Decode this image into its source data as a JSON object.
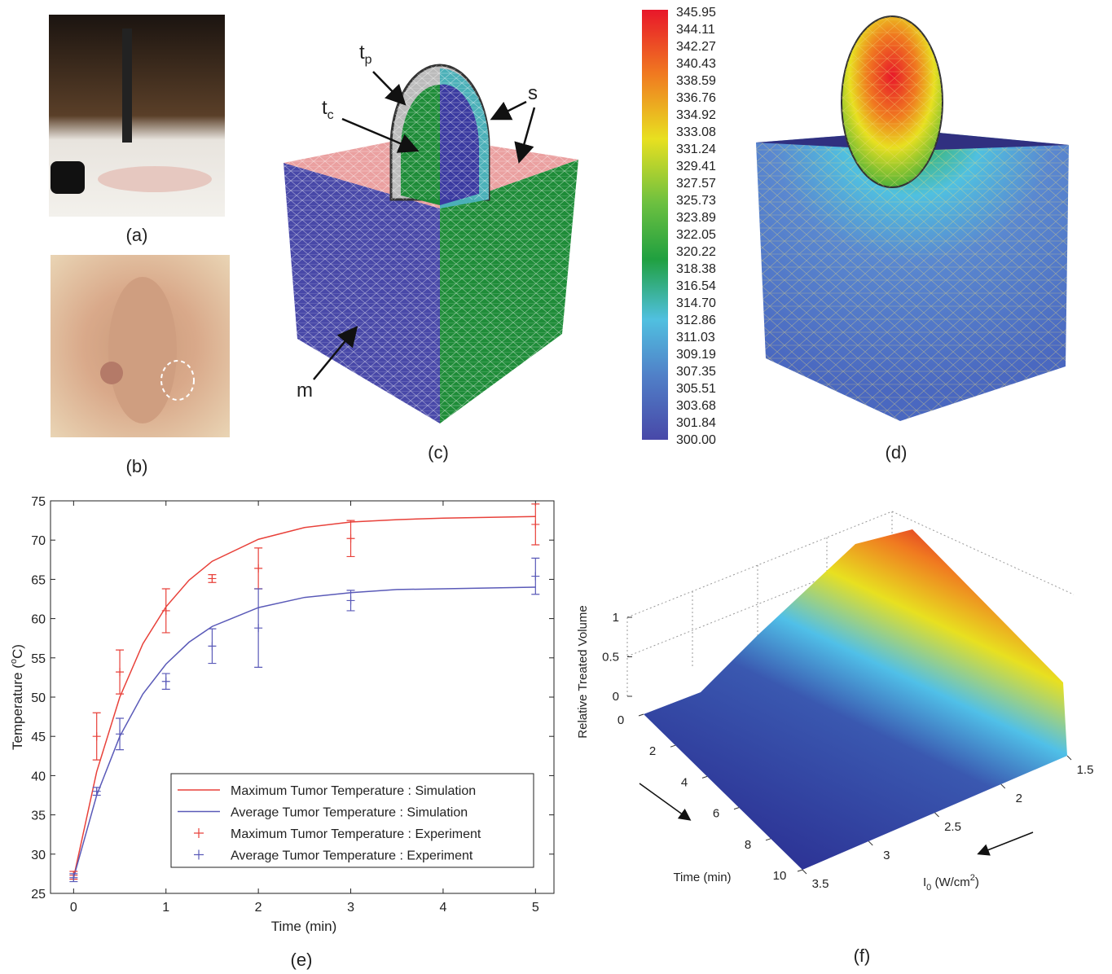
{
  "panel_labels": [
    "(a)",
    "(b)",
    "(c)",
    "(d)",
    "(e)",
    "(f)"
  ],
  "mesh_labels": [
    {
      "base": "t",
      "sub": "p"
    },
    {
      "base": "t",
      "sub": "c"
    },
    {
      "base": "s"
    },
    {
      "base": "m"
    }
  ],
  "colorbar": {
    "labels": [
      "345.95",
      "344.11",
      "342.27",
      "340.43",
      "338.59",
      "336.76",
      "334.92",
      "333.08",
      "331.24",
      "329.41",
      "327.57",
      "325.73",
      "323.89",
      "322.05",
      "320.22",
      "318.38",
      "316.54",
      "314.70",
      "312.86",
      "311.03",
      "309.19",
      "307.35",
      "305.51",
      "303.68",
      "301.84",
      "300.00"
    ]
  },
  "chart_data": [
    {
      "type": "line",
      "xlabel": "Time (min)",
      "ylabel": {
        "text": "Temperature (",
        "sup": "o",
        "end": "C)"
      },
      "xlim": [
        -0.25,
        5.2
      ],
      "ylim": [
        25,
        75
      ],
      "xticks": [
        0,
        1,
        2,
        3,
        4,
        5
      ],
      "yticks": [
        25,
        30,
        35,
        40,
        45,
        50,
        55,
        60,
        65,
        70,
        75
      ],
      "legend": "lower right",
      "series": [
        {
          "name": "Maximum Tumor Temperature : Simulation",
          "color": "#e8413a",
          "style": "line",
          "x": [
            0,
            0.25,
            0.5,
            0.75,
            1,
            1.25,
            1.5,
            2,
            2.5,
            3,
            3.5,
            4,
            4.5,
            5
          ],
          "values": [
            27,
            40.5,
            50.0,
            56.8,
            61.5,
            64.9,
            67.3,
            70.1,
            71.6,
            72.3,
            72.6,
            72.8,
            72.9,
            73.0
          ]
        },
        {
          "name": "Average Tumor Temperature : Simulation",
          "color": "#5a5ab8",
          "style": "line",
          "x": [
            0,
            0.25,
            0.5,
            0.75,
            1,
            1.25,
            1.5,
            2,
            2.5,
            3,
            3.5,
            4,
            4.5,
            5
          ],
          "values": [
            27,
            37.5,
            45.0,
            50.4,
            54.2,
            57.0,
            59.0,
            61.4,
            62.7,
            63.3,
            63.7,
            63.8,
            63.9,
            64.0
          ]
        },
        {
          "name": "Maximum Tumor Temperature : Experiment",
          "color": "#e8413a",
          "style": "errorbar",
          "x": [
            0,
            0.25,
            0.5,
            1,
            1.5,
            2,
            3,
            5
          ],
          "values": [
            27.3,
            45,
            53.2,
            61,
            65.1,
            66.4,
            70.2,
            72
          ],
          "errors": [
            0.5,
            3,
            2.8,
            2.8,
            0.5,
            2.6,
            2.3,
            2.6
          ]
        },
        {
          "name": "Average Tumor Temperature : Experiment",
          "color": "#5a5ab8",
          "style": "errorbar",
          "x": [
            0,
            0.25,
            0.5,
            1,
            1.5,
            2,
            3,
            5
          ],
          "values": [
            27,
            38,
            45.3,
            52,
            56.5,
            58.8,
            62.3,
            65.4
          ],
          "errors": [
            0.5,
            0.5,
            2,
            1,
            2.2,
            5,
            1.3,
            2.3
          ]
        }
      ]
    },
    {
      "type": "surface",
      "zlabel": "Relative Treated Volume",
      "xlabel": "Time (min)",
      "ylabel": {
        "base": "I",
        "sub": "0",
        "unit": " (W/cm",
        "sup": "2",
        "end": ")"
      },
      "xlim": [
        0,
        10
      ],
      "xticks": [
        0,
        2,
        4,
        6,
        8,
        10
      ],
      "ylim": [
        1.5,
        3.5
      ],
      "yticks": [
        1.5,
        2,
        2.5,
        3,
        3.5
      ],
      "zlim": [
        0,
        1
      ],
      "zticks": [
        0,
        0.5,
        1
      ]
    }
  ]
}
